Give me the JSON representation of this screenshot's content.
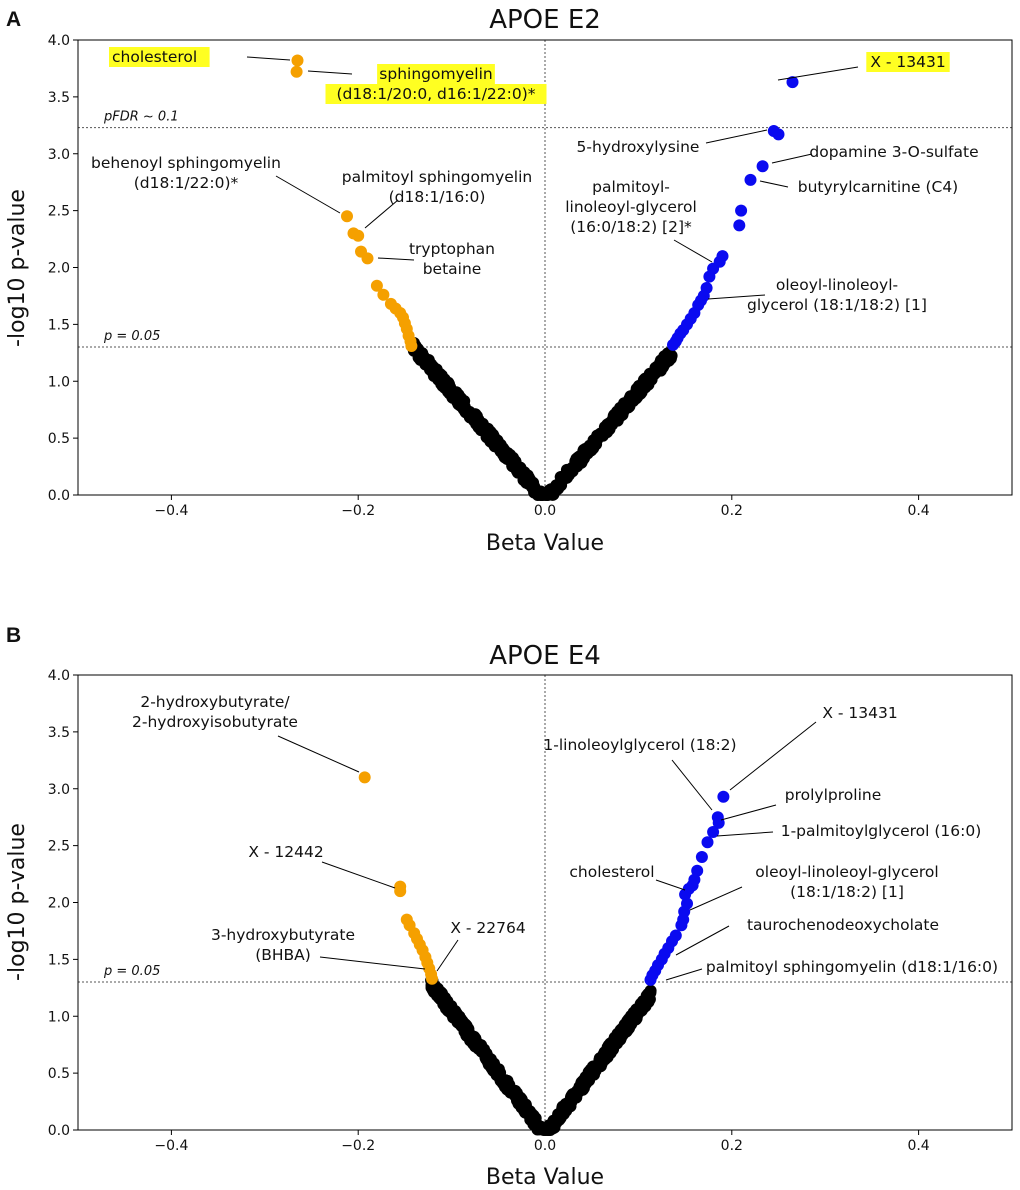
{
  "chart_data": [
    {
      "panel": "A",
      "type": "scatter",
      "title": "APOE E2",
      "xlabel": "Beta Value",
      "ylabel": "-log10 p-value",
      "xlim": [
        -0.5,
        0.5
      ],
      "ylim": [
        0.0,
        4.0
      ],
      "xticks": [
        "−0.4",
        "−0.2",
        "0.0",
        "0.2",
        "0.4"
      ],
      "xtick_values": [
        -0.4,
        -0.2,
        0.0,
        0.2,
        0.4
      ],
      "yticks": [
        "0.0",
        "0.5",
        "1.0",
        "1.5",
        "2.0",
        "2.5",
        "3.0",
        "3.5",
        "4.0"
      ],
      "ytick_values": [
        0.0,
        0.5,
        1.0,
        1.5,
        2.0,
        2.5,
        3.0,
        3.5,
        4.0
      ],
      "colors": {
        "negative_sig": "#f5a000",
        "positive_sig": "#0a0af0",
        "nonsig": "#000000",
        "highlight": "#ffff22"
      },
      "thresholds": [
        {
          "label": "pFDR ~ 0.1",
          "y": 3.23
        },
        {
          "label": "p = 0.05",
          "y": 1.301
        }
      ],
      "cloud": {
        "slope": 9.55,
        "neg_max_abs_beta": 0.143,
        "pos_max_abs_beta": 0.136
      },
      "series": [
        {
          "name": "Negative (p < 0.05)",
          "color": "#f5a000",
          "points": [
            [
              -0.265,
              3.82
            ],
            [
              -0.266,
              3.72
            ],
            [
              -0.212,
              2.45
            ],
            [
              -0.205,
              2.3
            ],
            [
              -0.2,
              2.28
            ],
            [
              -0.197,
              2.14
            ],
            [
              -0.19,
              2.08
            ],
            [
              -0.18,
              1.84
            ],
            [
              -0.173,
              1.76
            ],
            [
              -0.165,
              1.68
            ],
            [
              -0.16,
              1.64
            ],
            [
              -0.155,
              1.6
            ],
            [
              -0.152,
              1.56
            ],
            [
              -0.15,
              1.51
            ],
            [
              -0.148,
              1.46
            ],
            [
              -0.146,
              1.4
            ],
            [
              -0.144,
              1.35
            ],
            [
              -0.143,
              1.31
            ]
          ]
        },
        {
          "name": "Positive (p < 0.05)",
          "color": "#0a0af0",
          "points": [
            [
              0.265,
              3.63
            ],
            [
              0.245,
              3.2
            ],
            [
              0.25,
              3.17
            ],
            [
              0.233,
              2.89
            ],
            [
              0.22,
              2.77
            ],
            [
              0.21,
              2.5
            ],
            [
              0.208,
              2.37
            ],
            [
              0.19,
              2.1
            ],
            [
              0.187,
              2.05
            ],
            [
              0.18,
              1.99
            ],
            [
              0.176,
              1.92
            ],
            [
              0.173,
              1.82
            ],
            [
              0.17,
              1.75
            ],
            [
              0.167,
              1.71
            ],
            [
              0.164,
              1.67
            ],
            [
              0.16,
              1.6
            ],
            [
              0.156,
              1.55
            ],
            [
              0.152,
              1.5
            ],
            [
              0.148,
              1.45
            ],
            [
              0.145,
              1.42
            ],
            [
              0.142,
              1.38
            ],
            [
              0.14,
              1.35
            ],
            [
              0.137,
              1.32
            ]
          ]
        }
      ],
      "annotations": [
        {
          "lines": [
            "cholesterol"
          ],
          "highlight": true,
          "x": -0.265,
          "y": 3.82
        },
        {
          "lines": [
            "sphingomyelin",
            "(d18:1/20:0, d16:1/22:0)*"
          ],
          "highlight": true,
          "x": -0.266,
          "y": 3.72
        },
        {
          "lines": [
            "X - 13431"
          ],
          "highlight": true,
          "x": 0.265,
          "y": 3.63
        },
        {
          "lines": [
            "5-hydroxylysine"
          ],
          "highlight": false,
          "x": 0.245,
          "y": 3.2
        },
        {
          "lines": [
            "dopamine 3-O-sulfate"
          ],
          "highlight": false,
          "x": 0.233,
          "y": 2.89
        },
        {
          "lines": [
            "butyrylcarnitine (C4)"
          ],
          "highlight": false,
          "x": 0.22,
          "y": 2.77
        },
        {
          "lines": [
            "behenoyl sphingomyelin",
            "(d18:1/22:0)*"
          ],
          "highlight": false,
          "x": -0.212,
          "y": 2.45
        },
        {
          "lines": [
            "palmitoyl sphingomyelin",
            "(d18:1/16:0)"
          ],
          "highlight": false,
          "x": -0.2,
          "y": 2.28
        },
        {
          "lines": [
            "tryptophan",
            "betaine"
          ],
          "highlight": false,
          "x": -0.19,
          "y": 2.08
        },
        {
          "lines": [
            "palmitoyl-",
            "linoleoyl-glycerol",
            "(16:0/18:2) [2]*"
          ],
          "highlight": false,
          "x": 0.18,
          "y": 1.99
        },
        {
          "lines": [
            "oleoyl-linoleoyl-",
            "glycerol (18:1/18:2) [1]"
          ],
          "highlight": false,
          "x": 0.167,
          "y": 1.71
        }
      ]
    },
    {
      "panel": "B",
      "type": "scatter",
      "title": "APOE E4",
      "xlabel": "Beta Value",
      "ylabel": "-log10 p-value",
      "xlim": [
        -0.5,
        0.5
      ],
      "ylim": [
        0.0,
        4.0
      ],
      "xticks": [
        "−0.4",
        "−0.2",
        "0.0",
        "0.2",
        "0.4"
      ],
      "xtick_values": [
        -0.4,
        -0.2,
        0.0,
        0.2,
        0.4
      ],
      "yticks": [
        "0.0",
        "0.5",
        "1.0",
        "1.5",
        "2.0",
        "2.5",
        "3.0",
        "3.5",
        "4.0"
      ],
      "ytick_values": [
        0.0,
        0.5,
        1.0,
        1.5,
        2.0,
        2.5,
        3.0,
        3.5,
        4.0
      ],
      "colors": {
        "negative_sig": "#f5a000",
        "positive_sig": "#0a0af0",
        "nonsig": "#000000",
        "highlight": "#ffff22"
      },
      "thresholds": [
        {
          "label": "p = 0.05",
          "y": 1.301
        }
      ],
      "cloud": {
        "slope": 10.9,
        "neg_max_abs_beta": 0.122,
        "pos_max_abs_beta": 0.114
      },
      "series": [
        {
          "name": "Negative (p < 0.05)",
          "color": "#f5a000",
          "points": [
            [
              -0.193,
              3.1
            ],
            [
              -0.155,
              2.14
            ],
            [
              -0.155,
              2.1
            ],
            [
              -0.148,
              1.85
            ],
            [
              -0.145,
              1.8
            ],
            [
              -0.14,
              1.73
            ],
            [
              -0.137,
              1.68
            ],
            [
              -0.134,
              1.63
            ],
            [
              -0.131,
              1.58
            ],
            [
              -0.128,
              1.52
            ],
            [
              -0.126,
              1.47
            ],
            [
              -0.124,
              1.42
            ],
            [
              -0.122,
              1.37
            ],
            [
              -0.121,
              1.33
            ]
          ]
        },
        {
          "name": "Positive (p < 0.05)",
          "color": "#0a0af0",
          "points": [
            [
              0.191,
              2.93
            ],
            [
              0.185,
              2.75
            ],
            [
              0.186,
              2.7
            ],
            [
              0.18,
              2.62
            ],
            [
              0.174,
              2.53
            ],
            [
              0.168,
              2.4
            ],
            [
              0.163,
              2.28
            ],
            [
              0.16,
              2.2
            ],
            [
              0.158,
              2.15
            ],
            [
              0.154,
              2.12
            ],
            [
              0.15,
              2.07
            ],
            [
              0.152,
              1.99
            ],
            [
              0.149,
              1.92
            ],
            [
              0.148,
              1.85
            ],
            [
              0.146,
              1.8
            ],
            [
              0.14,
              1.71
            ],
            [
              0.136,
              1.66
            ],
            [
              0.132,
              1.6
            ],
            [
              0.128,
              1.55
            ],
            [
              0.125,
              1.5
            ],
            [
              0.121,
              1.45
            ],
            [
              0.118,
              1.4
            ],
            [
              0.115,
              1.36
            ],
            [
              0.113,
              1.32
            ]
          ]
        }
      ],
      "annotations": [
        {
          "lines": [
            "2-hydroxybutyrate/",
            "2-hydroxyisobutyrate"
          ],
          "highlight": false,
          "x": -0.193,
          "y": 3.1
        },
        {
          "lines": [
            "X - 12442"
          ],
          "highlight": false,
          "x": -0.155,
          "y": 2.12
        },
        {
          "lines": [
            "3-hydroxybutyrate",
            "(BHBA)"
          ],
          "highlight": false,
          "x": -0.122,
          "y": 1.37
        },
        {
          "lines": [
            "X - 22764"
          ],
          "highlight": false,
          "x": -0.12,
          "y": 1.33
        },
        {
          "lines": [
            "X - 13431"
          ],
          "highlight": false,
          "x": 0.191,
          "y": 2.93
        },
        {
          "lines": [
            "1-linoleoylglycerol (18:2)"
          ],
          "highlight": false,
          "x": 0.185,
          "y": 2.75
        },
        {
          "lines": [
            "prolylproline"
          ],
          "highlight": false,
          "x": 0.186,
          "y": 2.7
        },
        {
          "lines": [
            "1-palmitoylglycerol (16:0)"
          ],
          "highlight": false,
          "x": 0.18,
          "y": 2.62
        },
        {
          "lines": [
            "cholesterol"
          ],
          "highlight": false,
          "x": 0.15,
          "y": 2.07
        },
        {
          "lines": [
            "oleoyl-linoleoyl-glycerol",
            "(18:1/18:2) [1]"
          ],
          "highlight": false,
          "x": 0.152,
          "y": 1.99
        },
        {
          "lines": [
            "taurochenodeoxycholate"
          ],
          "highlight": false,
          "x": 0.132,
          "y": 1.6
        },
        {
          "lines": [
            "palmitoyl sphingomyelin (d18:1/16:0)"
          ],
          "highlight": false,
          "x": 0.113,
          "y": 1.32
        }
      ]
    }
  ]
}
